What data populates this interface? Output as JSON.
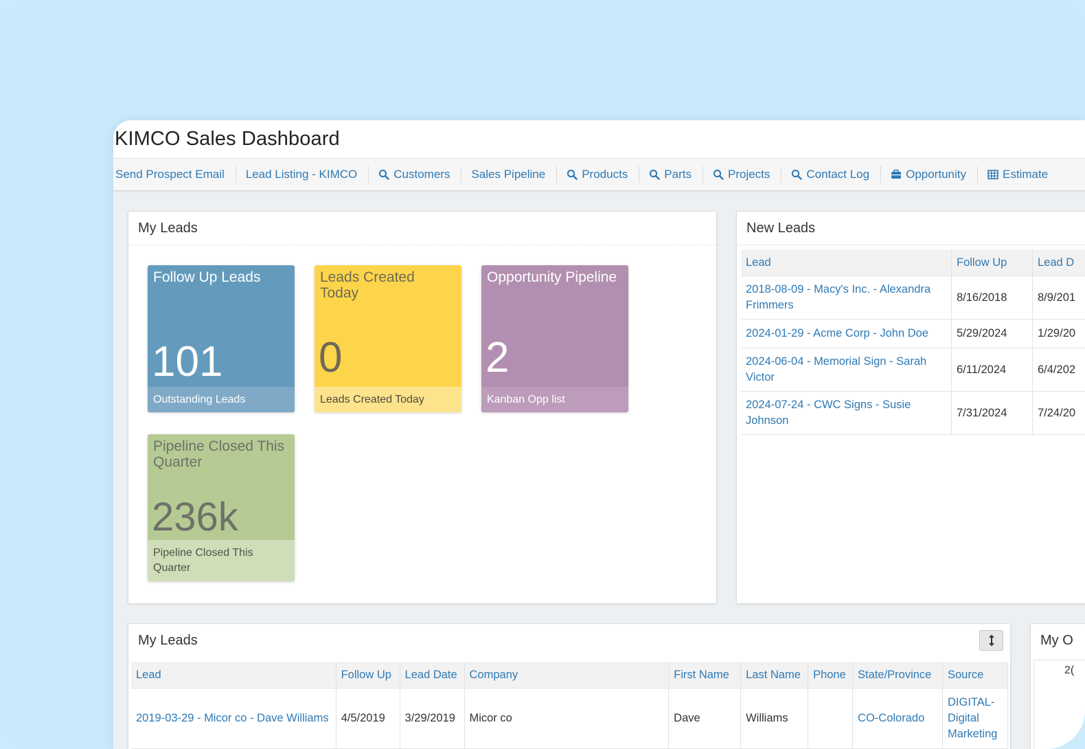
{
  "app": {
    "title": "KIMCO Sales Dashboard"
  },
  "nav": [
    {
      "label": "Send Prospect Email",
      "icon": ""
    },
    {
      "label": "Lead Listing - KIMCO",
      "icon": ""
    },
    {
      "label": "Customers",
      "icon": "search-icon"
    },
    {
      "label": "Sales Pipeline",
      "icon": ""
    },
    {
      "label": "Products",
      "icon": "search-icon"
    },
    {
      "label": "Parts",
      "icon": "search-icon"
    },
    {
      "label": "Projects",
      "icon": "search-icon"
    },
    {
      "label": "Contact Log",
      "icon": "search-icon"
    },
    {
      "label": "Opportunity",
      "icon": "briefcase-icon"
    },
    {
      "label": "Estimate",
      "icon": "table-icon"
    }
  ],
  "my_leads_tiles": {
    "heading": "My Leads",
    "tiles": [
      {
        "title": "Follow Up Leads",
        "value": "101",
        "footer": "Outstanding Leads"
      },
      {
        "title": "Leads Created Today",
        "value": "0",
        "footer": "Leads Created Today"
      },
      {
        "title": "Opportunity Pipeline",
        "value": "2",
        "footer": "Kanban Opp list"
      },
      {
        "title": "Pipeline Closed This Quarter",
        "value": "236k",
        "footer": "Pipeline Closed This Quarter"
      }
    ]
  },
  "new_leads": {
    "heading": "New Leads",
    "columns": [
      "Lead",
      "Follow Up",
      "Lead D"
    ],
    "rows": [
      {
        "lead": "2018-08-09 - Macy's Inc. - Alexandra Frimmers",
        "follow_up": "8/16/2018",
        "lead_date": "8/9/201"
      },
      {
        "lead": "2024-01-29 - Acme Corp - John Doe",
        "follow_up": "5/29/2024",
        "lead_date": "1/29/20"
      },
      {
        "lead": "2024-06-04 - Memorial Sign - Sarah Victor",
        "follow_up": "6/11/2024",
        "lead_date": "6/4/202"
      },
      {
        "lead": "2024-07-24 - CWC Signs - Susie Johnson",
        "follow_up": "7/31/2024",
        "lead_date": "7/24/20"
      }
    ]
  },
  "my_leads_table": {
    "heading": "My Leads",
    "columns": [
      "Lead",
      "Follow Up",
      "Lead Date",
      "Company",
      "First Name",
      "Last Name",
      "Phone",
      "State/Province",
      "Source"
    ],
    "rows": [
      {
        "lead": "2019-03-29 - Micor co - Dave Williams",
        "follow_up": "4/5/2019",
        "lead_date": "3/29/2019",
        "company": "Micor co",
        "first_name": "Dave",
        "last_name": "Williams",
        "phone": "",
        "state": "CO-Colorado",
        "source": "DIGITAL-Digital Marketing"
      }
    ]
  },
  "my_o_panel": {
    "heading": "My O",
    "partial_value": "2("
  }
}
